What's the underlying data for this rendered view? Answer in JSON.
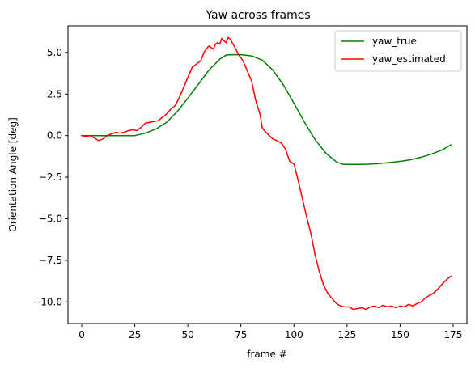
{
  "chart_data": {
    "type": "line",
    "title": "Yaw across frames",
    "xlabel": "frame #",
    "ylabel": "Orientation Angle [deg]",
    "xlim": [
      -6.5,
      181.5
    ],
    "ylim": [
      -11.3,
      6.6
    ],
    "xticks": [
      0,
      25,
      50,
      75,
      100,
      125,
      150,
      175
    ],
    "yticks": [
      -10.0,
      -7.5,
      -5.0,
      -2.5,
      0.0,
      2.5,
      5.0
    ],
    "ytick_labels": [
      "−10.0",
      "−7.5",
      "−5.0",
      "−2.5",
      "0.0",
      "2.5",
      "5.0"
    ],
    "grid": false,
    "legend": "top-right",
    "series": [
      {
        "name": "yaw_true",
        "color": "#008000",
        "x": [
          0,
          25,
          30,
          35,
          40,
          45,
          50,
          55,
          60,
          65,
          68,
          70,
          75,
          80,
          85,
          90,
          95,
          100,
          105,
          110,
          115,
          120,
          123,
          125,
          130,
          135,
          140,
          145,
          150,
          155,
          160,
          165,
          170,
          174
        ],
        "y": [
          0,
          0,
          0.15,
          0.4,
          0.8,
          1.45,
          2.25,
          3.1,
          3.95,
          4.6,
          4.84,
          4.87,
          4.87,
          4.8,
          4.55,
          3.95,
          3.05,
          1.95,
          0.8,
          -0.25,
          -1.05,
          -1.58,
          -1.72,
          -1.73,
          -1.73,
          -1.72,
          -1.68,
          -1.62,
          -1.55,
          -1.45,
          -1.3,
          -1.1,
          -0.85,
          -0.55
        ]
      },
      {
        "name": "yaw_estimated",
        "color": "#ff0000",
        "x": [
          0,
          2,
          4,
          6,
          8,
          10,
          12,
          14,
          16,
          18,
          20,
          22,
          24,
          26,
          28,
          30,
          32,
          34,
          36,
          38,
          40,
          42,
          44,
          46,
          48,
          50,
          52,
          54,
          56,
          58,
          60,
          62,
          63,
          64,
          65,
          66,
          67,
          68,
          69,
          70,
          72,
          74,
          76,
          78,
          80,
          82,
          84,
          85,
          86,
          88,
          90,
          92,
          94,
          96,
          98,
          100,
          102,
          104,
          106,
          108,
          110,
          112,
          114,
          116,
          118,
          120,
          122,
          124,
          126,
          128,
          130,
          132,
          134,
          136,
          138,
          140,
          142,
          144,
          146,
          148,
          150,
          152,
          154,
          156,
          158,
          160,
          162,
          164,
          166,
          168,
          170,
          172,
          174
        ],
        "y": [
          0.0,
          -0.05,
          0.0,
          -0.15,
          -0.3,
          -0.2,
          0.0,
          0.1,
          0.2,
          0.15,
          0.2,
          0.3,
          0.35,
          0.3,
          0.5,
          0.75,
          0.8,
          0.85,
          0.9,
          1.1,
          1.3,
          1.6,
          1.8,
          2.3,
          2.9,
          3.5,
          4.1,
          4.3,
          4.5,
          5.1,
          5.4,
          5.2,
          5.5,
          5.6,
          5.5,
          5.85,
          5.7,
          5.6,
          5.9,
          5.8,
          5.35,
          4.85,
          4.5,
          3.9,
          3.3,
          2.1,
          1.3,
          0.5,
          0.3,
          0.05,
          -0.2,
          -0.3,
          -0.45,
          -0.8,
          -1.55,
          -1.7,
          -2.7,
          -3.8,
          -4.9,
          -5.9,
          -7.2,
          -8.2,
          -9.0,
          -9.5,
          -9.8,
          -10.1,
          -10.25,
          -10.3,
          -10.3,
          -10.45,
          -10.4,
          -10.35,
          -10.45,
          -10.3,
          -10.25,
          -10.35,
          -10.2,
          -10.3,
          -10.25,
          -10.35,
          -10.25,
          -10.3,
          -10.15,
          -10.25,
          -10.1,
          -10.0,
          -9.75,
          -9.6,
          -9.45,
          -9.2,
          -8.9,
          -8.65,
          -8.45
        ]
      }
    ]
  }
}
